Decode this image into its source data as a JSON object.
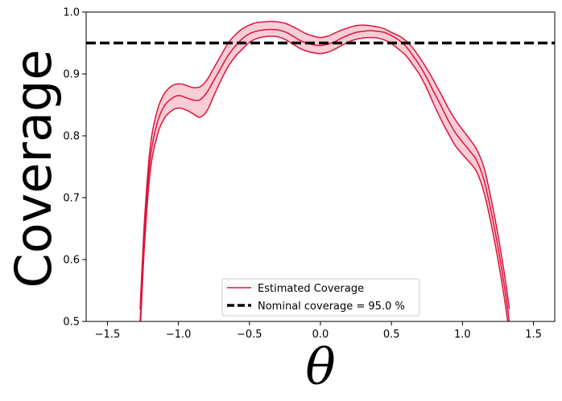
{
  "chart_data": {
    "type": "line",
    "title": "",
    "xlabel": "θ",
    "ylabel": "Coverage",
    "xlim": [
      -1.65,
      1.65
    ],
    "ylim": [
      0.5,
      1.0
    ],
    "xticks": [
      -1.5,
      -1.0,
      -0.5,
      0.0,
      0.5,
      1.0,
      1.5
    ],
    "xtick_labels": [
      "−1.5",
      "−1.0",
      "−0.5",
      "0.0",
      "0.5",
      "1.0",
      "1.5"
    ],
    "yticks": [
      0.5,
      0.6,
      0.7,
      0.8,
      0.9,
      1.0
    ],
    "ytick_labels": [
      "0.5",
      "0.6",
      "0.7",
      "0.8",
      "0.9",
      "1.0"
    ],
    "grid": false,
    "legend_position": "bottom-center",
    "colors": {
      "estimated": "#dc143c",
      "band_fill": "#f9cdd5",
      "nominal": "#000000"
    },
    "series": [
      {
        "name": "Estimated Coverage",
        "style": "solid",
        "x": [
          -1.27,
          -1.24,
          -1.2,
          -1.15,
          -1.1,
          -1.05,
          -1.0,
          -0.95,
          -0.9,
          -0.85,
          -0.8,
          -0.75,
          -0.7,
          -0.65,
          -0.6,
          -0.55,
          -0.5,
          -0.45,
          -0.4,
          -0.35,
          -0.3,
          -0.25,
          -0.2,
          -0.15,
          -0.1,
          -0.05,
          0.0,
          0.05,
          0.1,
          0.15,
          0.2,
          0.25,
          0.3,
          0.35,
          0.4,
          0.45,
          0.5,
          0.55,
          0.6,
          0.65,
          0.7,
          0.75,
          0.8,
          0.85,
          0.9,
          0.95,
          1.0,
          1.05,
          1.1,
          1.15,
          1.2,
          1.25,
          1.3,
          1.33
        ],
        "y": [
          0.5,
          0.64,
          0.76,
          0.82,
          0.848,
          0.86,
          0.865,
          0.862,
          0.858,
          0.858,
          0.87,
          0.89,
          0.91,
          0.93,
          0.945,
          0.957,
          0.965,
          0.969,
          0.971,
          0.972,
          0.971,
          0.968,
          0.962,
          0.955,
          0.95,
          0.947,
          0.946,
          0.948,
          0.952,
          0.958,
          0.963,
          0.967,
          0.969,
          0.97,
          0.969,
          0.967,
          0.962,
          0.955,
          0.945,
          0.93,
          0.913,
          0.893,
          0.87,
          0.848,
          0.825,
          0.805,
          0.79,
          0.776,
          0.76,
          0.73,
          0.68,
          0.62,
          0.55,
          0.5
        ]
      },
      {
        "name": "Nominal coverage = 95.0 %",
        "style": "dashed",
        "y": 0.95
      }
    ],
    "band": {
      "x": [
        -1.27,
        -1.24,
        -1.2,
        -1.15,
        -1.1,
        -1.05,
        -1.0,
        -0.95,
        -0.9,
        -0.85,
        -0.8,
        -0.75,
        -0.7,
        -0.65,
        -0.6,
        -0.55,
        -0.5,
        -0.45,
        -0.4,
        -0.35,
        -0.3,
        -0.25,
        -0.2,
        -0.15,
        -0.1,
        -0.05,
        0.0,
        0.05,
        0.1,
        0.15,
        0.2,
        0.25,
        0.3,
        0.35,
        0.4,
        0.45,
        0.5,
        0.55,
        0.6,
        0.65,
        0.7,
        0.75,
        0.8,
        0.85,
        0.9,
        0.95,
        1.0,
        1.05,
        1.1,
        1.15,
        1.2,
        1.25,
        1.3,
        1.33
      ],
      "upper": [
        0.52,
        0.66,
        0.78,
        0.84,
        0.868,
        0.88,
        0.884,
        0.882,
        0.878,
        0.879,
        0.89,
        0.91,
        0.93,
        0.95,
        0.963,
        0.973,
        0.979,
        0.983,
        0.984,
        0.985,
        0.984,
        0.982,
        0.977,
        0.971,
        0.965,
        0.961,
        0.959,
        0.961,
        0.966,
        0.971,
        0.975,
        0.978,
        0.979,
        0.978,
        0.976,
        0.973,
        0.967,
        0.962,
        0.954,
        0.942,
        0.926,
        0.908,
        0.888,
        0.867,
        0.845,
        0.826,
        0.81,
        0.795,
        0.778,
        0.75,
        0.7,
        0.64,
        0.57,
        0.52
      ],
      "lower": [
        0.48,
        0.62,
        0.74,
        0.8,
        0.828,
        0.84,
        0.845,
        0.842,
        0.836,
        0.83,
        0.84,
        0.865,
        0.89,
        0.912,
        0.928,
        0.94,
        0.951,
        0.957,
        0.96,
        0.961,
        0.96,
        0.956,
        0.949,
        0.942,
        0.937,
        0.934,
        0.933,
        0.935,
        0.94,
        0.946,
        0.952,
        0.956,
        0.958,
        0.959,
        0.958,
        0.955,
        0.949,
        0.94,
        0.93,
        0.915,
        0.898,
        0.876,
        0.85,
        0.826,
        0.804,
        0.784,
        0.77,
        0.757,
        0.742,
        0.71,
        0.66,
        0.6,
        0.53,
        0.48
      ]
    }
  }
}
